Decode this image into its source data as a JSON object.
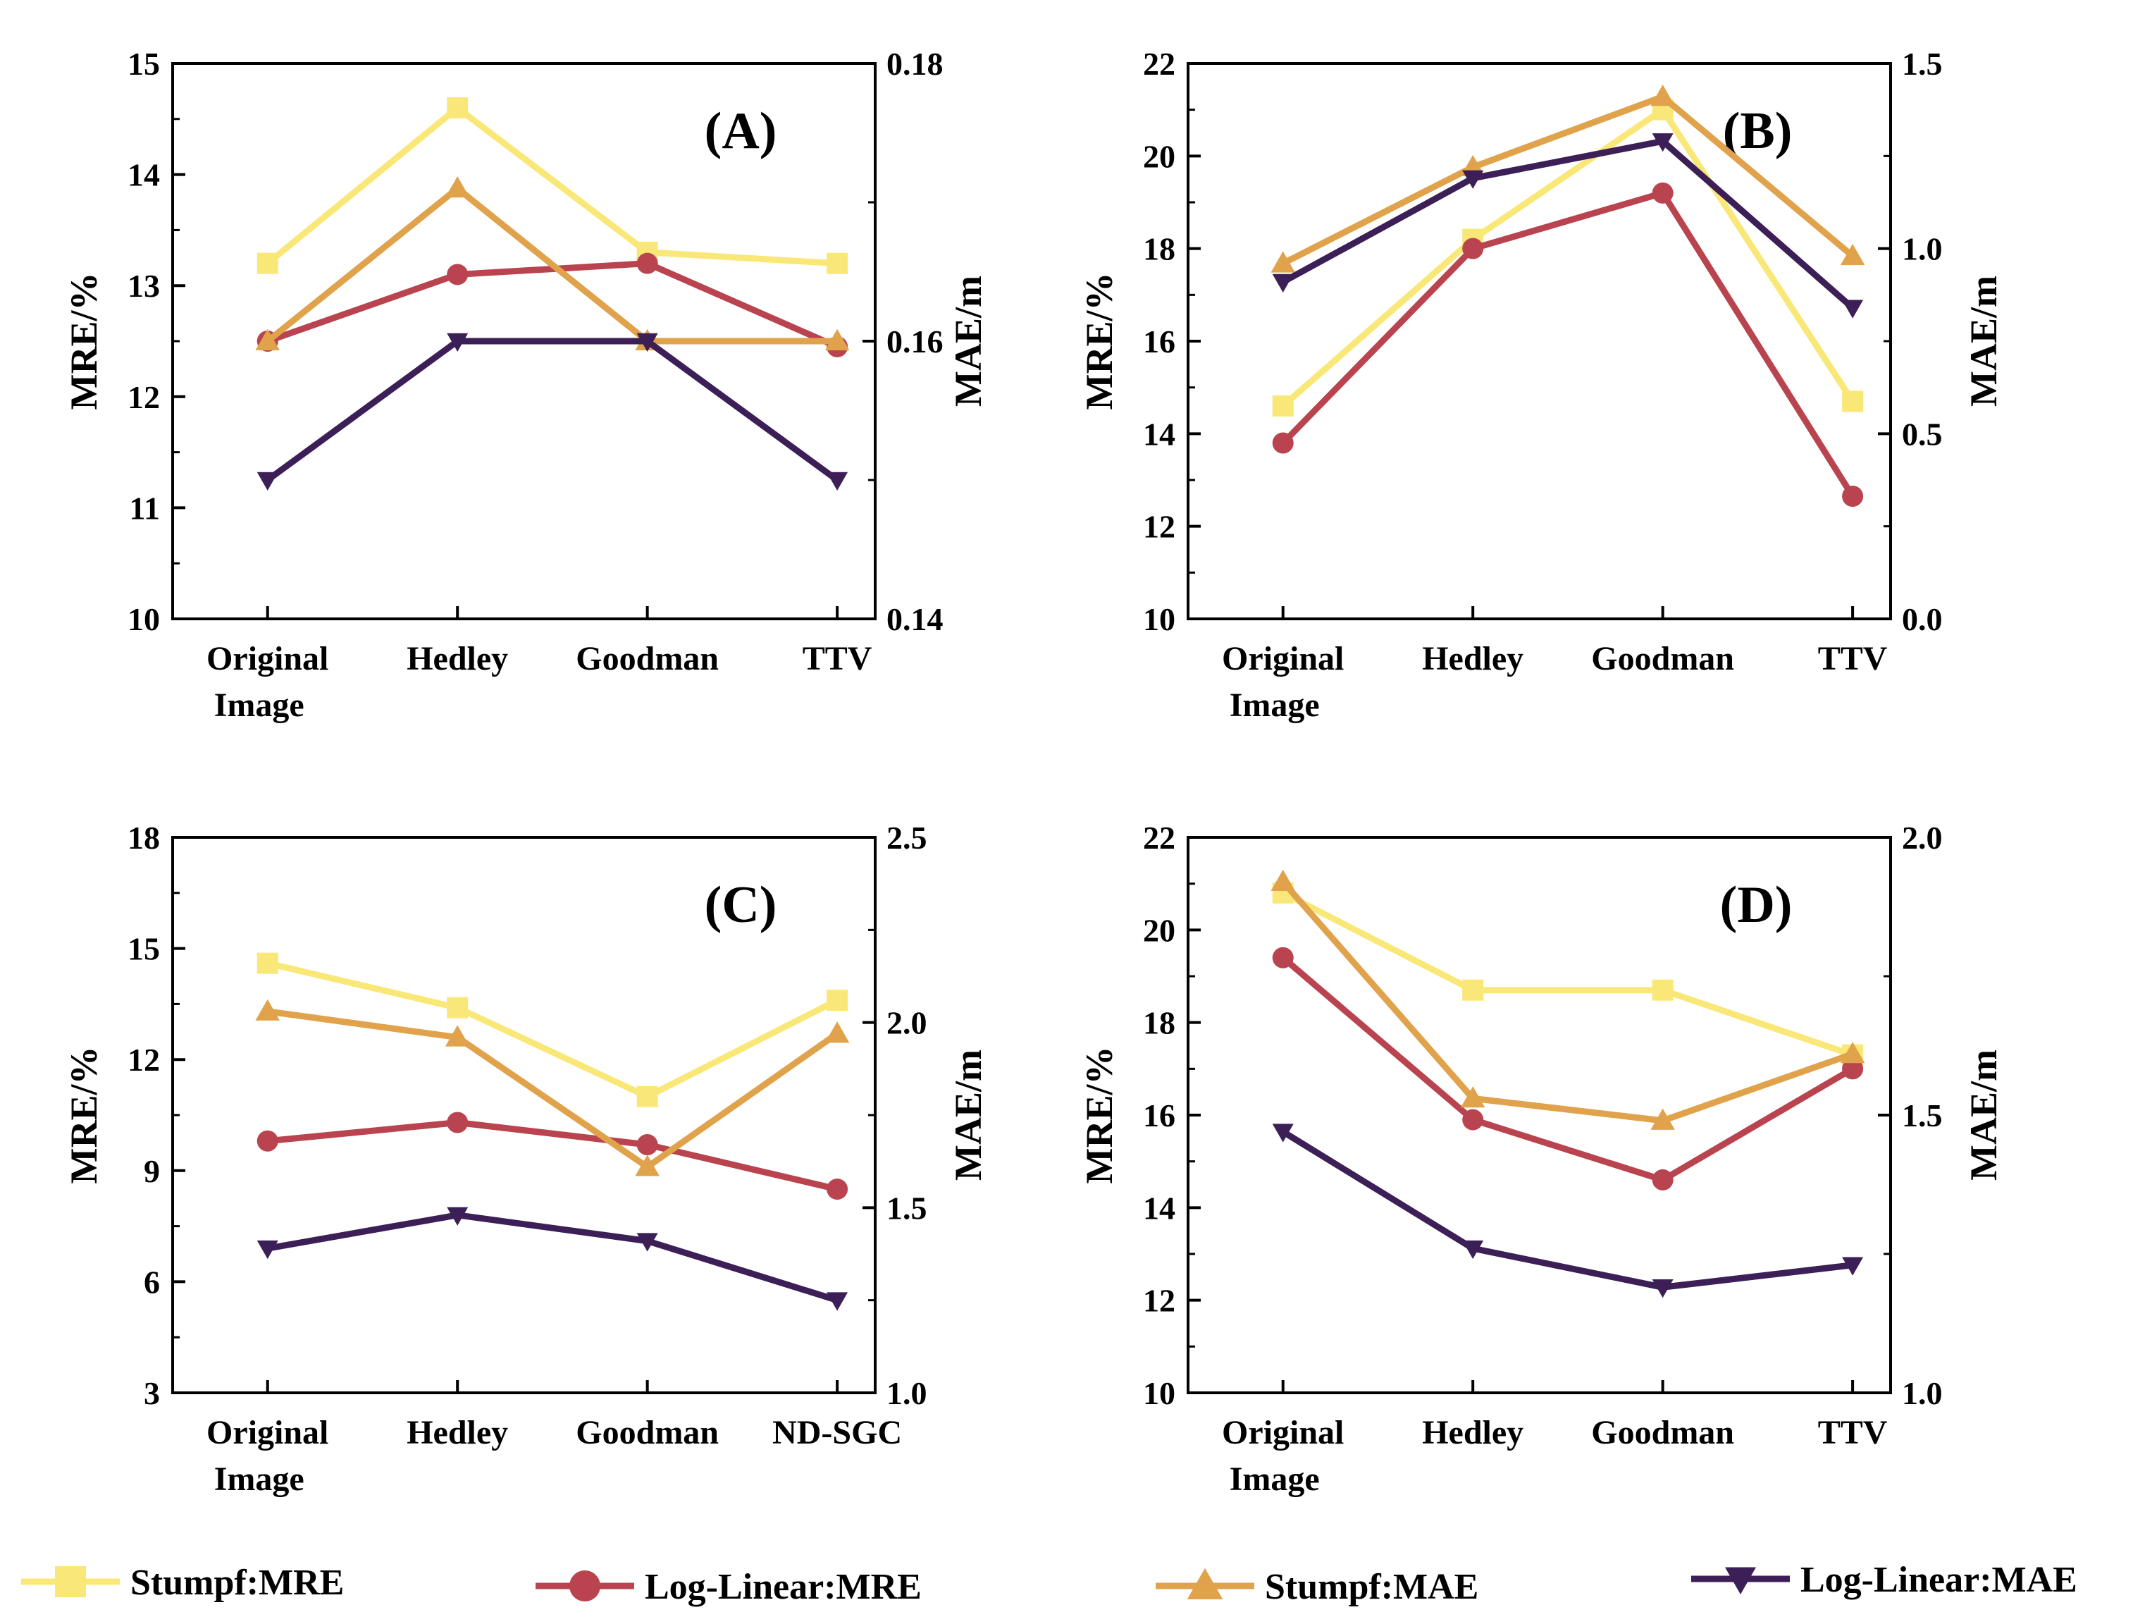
{
  "colors": {
    "stumpf_mre": "#F9E878",
    "loglinear_mre": "#B9434E",
    "stumpf_mae": "#E0A24A",
    "loglinear_mae": "#3B1F56",
    "axis": "#000000"
  },
  "legend": [
    {
      "key": "stumpf_mre",
      "label": "Stumpf:MRE",
      "marker": "square"
    },
    {
      "key": "loglinear_mre",
      "label": "Log-Linear:MRE",
      "marker": "circle"
    },
    {
      "key": "stumpf_mae",
      "label": "Stumpf:MAE",
      "marker": "triangle-up"
    },
    {
      "key": "loglinear_mae",
      "label": "Log-Linear:MAE",
      "marker": "triangle-down"
    }
  ],
  "chart_data": [
    {
      "type": "line",
      "title": "(A)",
      "categories": [
        "Original|Image",
        "Hedley",
        "Goodman",
        "TTV"
      ],
      "ylabel": "MRE/%",
      "ylabel_right": "MAE/m",
      "ylim": [
        10,
        15
      ],
      "yticks": [
        "10",
        "11",
        "12",
        "13",
        "14",
        "15"
      ],
      "ylim_right": [
        0.14,
        0.18
      ],
      "yticks_right": [
        "0.14",
        "0.16",
        "0.18"
      ],
      "series": [
        {
          "name": "Stumpf:MRE",
          "key": "stumpf_mre",
          "axis": "left",
          "values": [
            13.2,
            14.6,
            13.3,
            13.2
          ]
        },
        {
          "name": "Log-Linear:MRE",
          "key": "loglinear_mre",
          "axis": "left",
          "values": [
            12.5,
            13.1,
            13.2,
            12.45
          ]
        },
        {
          "name": "Stumpf:MAE",
          "key": "stumpf_mae",
          "axis": "right",
          "values": [
            0.16,
            0.171,
            0.16,
            0.16
          ]
        },
        {
          "name": "Log-Linear:MAE",
          "key": "loglinear_mae",
          "axis": "right",
          "values": [
            0.15,
            0.16,
            0.16,
            0.15
          ]
        }
      ]
    },
    {
      "type": "line",
      "title": "(B)",
      "categories": [
        "Original|Image",
        "Hedley",
        "Goodman",
        "TTV"
      ],
      "ylabel": "MRE/%",
      "ylabel_right": "MAE/m",
      "ylim": [
        10,
        22
      ],
      "yticks": [
        "10",
        "12",
        "14",
        "16",
        "18",
        "20",
        "22"
      ],
      "ylim_right": [
        0,
        1.5
      ],
      "yticks_right": [
        "0.0",
        "0.5",
        "1.0",
        "1.5"
      ],
      "series": [
        {
          "name": "Stumpf:MRE",
          "key": "stumpf_mre",
          "axis": "left",
          "values": [
            14.6,
            18.2,
            21.0,
            14.7
          ]
        },
        {
          "name": "Log-Linear:MRE",
          "key": "loglinear_mre",
          "axis": "left",
          "values": [
            13.8,
            18.0,
            19.2,
            12.65
          ]
        },
        {
          "name": "Stumpf:MAE",
          "key": "stumpf_mae",
          "axis": "right",
          "values": [
            0.96,
            1.22,
            1.41,
            0.98
          ]
        },
        {
          "name": "Log-Linear:MAE",
          "key": "loglinear_mae",
          "axis": "right",
          "values": [
            0.91,
            1.19,
            1.29,
            0.84
          ]
        }
      ]
    },
    {
      "type": "line",
      "title": "(C)",
      "categories": [
        "Original|Image",
        "Hedley",
        "Goodman",
        "ND-SGC"
      ],
      "ylabel": "MRE/%",
      "ylabel_right": "MAE/m",
      "ylim": [
        3,
        18
      ],
      "yticks": [
        "3",
        "6",
        "9",
        "12",
        "15",
        "18"
      ],
      "ylim_right": [
        1.0,
        2.5
      ],
      "yticks_right": [
        "1.0",
        "1.5",
        "2.0",
        "2.5"
      ],
      "series": [
        {
          "name": "Stumpf:MRE",
          "key": "stumpf_mre",
          "axis": "left",
          "values": [
            14.6,
            13.4,
            11.0,
            13.6
          ]
        },
        {
          "name": "Log-Linear:MRE",
          "key": "loglinear_mre",
          "axis": "left",
          "values": [
            9.8,
            10.3,
            9.7,
            8.5
          ]
        },
        {
          "name": "Stumpf:MAE",
          "key": "stumpf_mae",
          "axis": "right",
          "values": [
            2.03,
            1.96,
            1.61,
            1.97
          ]
        },
        {
          "name": "Log-Linear:MAE",
          "key": "loglinear_mae",
          "axis": "right",
          "values": [
            1.39,
            1.48,
            1.41,
            1.25
          ]
        }
      ]
    },
    {
      "type": "line",
      "title": "(D)",
      "categories": [
        "Original|Image",
        "Hedley",
        "Goodman",
        "TTV"
      ],
      "ylabel": "MRE/%",
      "ylabel_right": "MAE/m",
      "ylim": [
        10,
        22
      ],
      "yticks": [
        "10",
        "12",
        "14",
        "16",
        "18",
        "20",
        "22"
      ],
      "ylim_right": [
        1.0,
        2.0
      ],
      "yticks_right": [
        "1.0",
        "1.5",
        "2.0"
      ],
      "series": [
        {
          "name": "Stumpf:MRE",
          "key": "stumpf_mre",
          "axis": "left",
          "values": [
            20.8,
            18.7,
            18.7,
            17.3
          ]
        },
        {
          "name": "Log-Linear:MRE",
          "key": "loglinear_mre",
          "axis": "left",
          "values": [
            19.4,
            15.9,
            14.6,
            17.0
          ]
        },
        {
          "name": "Stumpf:MAE",
          "key": "stumpf_mae",
          "axis": "right",
          "values": [
            1.92,
            1.53,
            1.49,
            1.61
          ]
        },
        {
          "name": "Log-Linear:MAE",
          "key": "loglinear_mae",
          "axis": "right",
          "values": [
            1.47,
            1.26,
            1.19,
            1.23
          ]
        }
      ]
    }
  ]
}
